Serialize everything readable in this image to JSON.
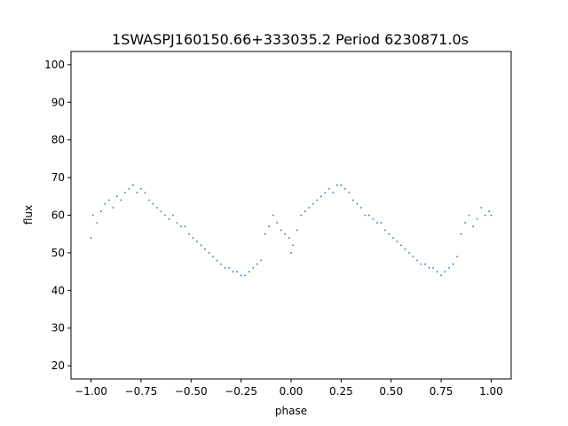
{
  "chart_data": {
    "type": "scatter",
    "title": "1SWASPJ160150.66+333035.2 Period 6230871.0s",
    "xlabel": "phase",
    "ylabel": "flux",
    "xlim": [
      -1.1,
      1.1
    ],
    "ylim": [
      16.5,
      103.5
    ],
    "xticks": [
      -1.0,
      -0.75,
      -0.5,
      -0.25,
      0.0,
      0.25,
      0.5,
      0.75,
      1.0
    ],
    "xtick_labels": [
      "−1.00",
      "−0.75",
      "−0.50",
      "−0.25",
      "0.00",
      "0.25",
      "0.50",
      "0.75",
      "1.00"
    ],
    "yticks": [
      20,
      30,
      40,
      50,
      60,
      70,
      80,
      90,
      100
    ],
    "ytick_labels": [
      "20",
      "30",
      "40",
      "50",
      "60",
      "70",
      "80",
      "90",
      "100"
    ],
    "grid": false,
    "marker_color": "#1f77b4",
    "series": [
      {
        "values_note": "phase-folded light curve (repeated over one extra cycle)",
        "x": [
          -1.0,
          -0.99,
          -0.97,
          -0.95,
          -0.93,
          -0.91,
          -0.89,
          -0.87,
          -0.85,
          -0.83,
          -0.81,
          -0.79,
          -0.77,
          -0.75,
          -0.73,
          -0.71,
          -0.69,
          -0.67,
          -0.65,
          -0.63,
          -0.61,
          -0.59,
          -0.57,
          -0.55,
          -0.53,
          -0.51,
          -0.49,
          -0.47,
          -0.45,
          -0.43,
          -0.41,
          -0.39,
          -0.37,
          -0.35,
          -0.33,
          -0.31,
          -0.29,
          -0.27,
          -0.25,
          -0.23,
          -0.21,
          -0.19,
          -0.17,
          -0.15,
          -0.13,
          -0.11,
          -0.09,
          -0.07,
          -0.05,
          -0.03,
          -0.01,
          0.0,
          0.01,
          0.03,
          0.05,
          0.07,
          0.09,
          0.11,
          0.13,
          0.15,
          0.17,
          0.19,
          0.21,
          0.23,
          0.25,
          0.27,
          0.29,
          0.31,
          0.33,
          0.35,
          0.37,
          0.39,
          0.41,
          0.43,
          0.45,
          0.47,
          0.49,
          0.51,
          0.53,
          0.55,
          0.57,
          0.59,
          0.61,
          0.63,
          0.65,
          0.67,
          0.69,
          0.71,
          0.73,
          0.75,
          0.77,
          0.79,
          0.81,
          0.83,
          0.85,
          0.87,
          0.89,
          0.91,
          0.93,
          0.95,
          0.97,
          0.99,
          1.0
        ],
        "y": [
          54,
          60,
          58,
          61,
          63,
          64,
          62,
          65,
          64,
          66,
          67,
          68,
          66,
          67,
          66,
          64,
          63,
          62,
          61,
          60,
          59,
          60,
          58,
          57,
          57,
          55,
          54,
          53,
          52,
          51,
          50,
          49,
          48,
          47,
          46,
          46,
          45,
          45,
          44,
          44,
          45,
          46,
          47,
          48,
          55,
          57,
          60,
          58,
          56,
          55,
          54,
          50,
          52,
          56,
          60,
          61,
          62,
          63,
          64,
          65,
          66,
          67,
          66,
          68,
          68,
          67,
          66,
          64,
          63,
          62,
          60,
          60,
          59,
          58,
          58,
          56,
          55,
          54,
          53,
          52,
          51,
          50,
          49,
          48,
          47,
          47,
          46,
          46,
          45,
          44,
          45,
          46,
          47,
          49,
          55,
          58,
          60,
          57,
          59,
          62,
          60,
          61,
          60
        ]
      }
    ]
  }
}
